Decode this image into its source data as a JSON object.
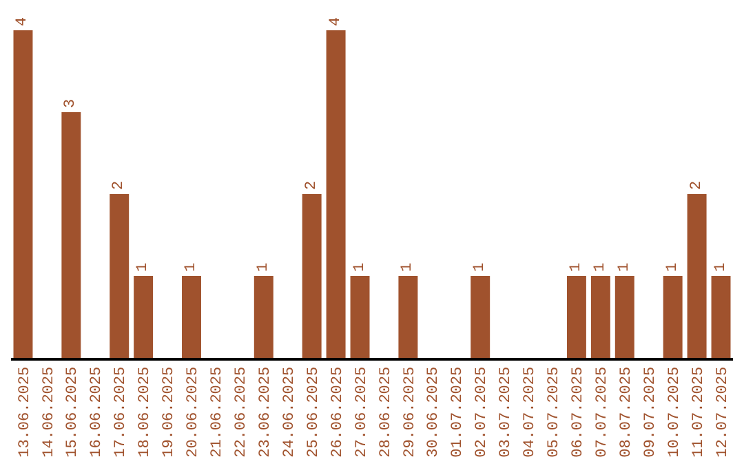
{
  "chart_data": {
    "type": "bar",
    "tick_labels": "x",
    "categories": [
      "13.06.2025",
      "14.06.2025",
      "15.06.2025",
      "16.06.2025",
      "17.06.2025",
      "18.06.2025",
      "19.06.2025",
      "20.06.2025",
      "21.06.2025",
      "22.06.2025",
      "23.06.2025",
      "24.06.2025",
      "25.06.2025",
      "26.06.2025",
      "27.06.2025",
      "28.06.2025",
      "29.06.2025",
      "30.06.2025",
      "01.07.2025",
      "02.07.2025",
      "03.07.2025",
      "04.07.2025",
      "05.07.2025",
      "06.07.2025",
      "07.07.2025",
      "08.07.2025",
      "09.07.2025",
      "10.07.2025",
      "11.07.2025",
      "12.07.2025"
    ],
    "values": [
      4,
      0,
      3,
      0,
      2,
      1,
      0,
      1,
      0,
      0,
      1,
      0,
      2,
      4,
      1,
      0,
      1,
      0,
      0,
      1,
      0,
      0,
      0,
      1,
      1,
      1,
      0,
      1,
      2,
      1
    ],
    "value_labels": [
      "4",
      null,
      "3",
      null,
      "2",
      "1",
      null,
      "1",
      null,
      null,
      "1",
      null,
      "2",
      "4",
      "1",
      null,
      "1",
      null,
      null,
      "1",
      null,
      null,
      null,
      "1",
      "1",
      "1",
      null,
      "1",
      "2",
      "1"
    ],
    "color": "#a0522d",
    "legend": false
  }
}
